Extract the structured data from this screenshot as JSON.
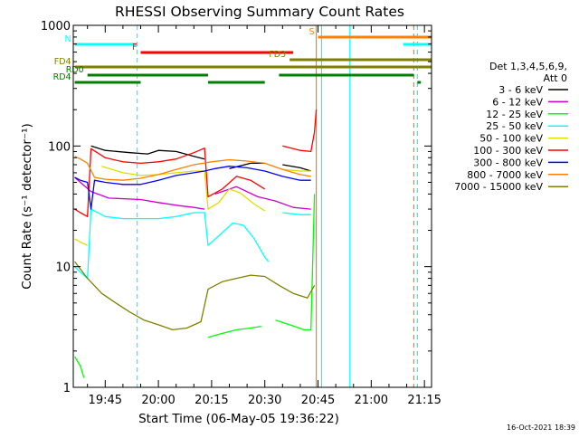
{
  "chart_data": {
    "type": "line",
    "title": "RHESSI Observing Summary Count Rates",
    "xlabel": "Start Time (06-May-05 19:36:22)",
    "ylabel": "Count Rate (s⁻¹ detector⁻¹)",
    "y_scale": "log",
    "ylim": [
      1,
      1000
    ],
    "xlim": [
      "19:36:22",
      "21:17:00"
    ],
    "y_ticks": [
      {
        "value": 1,
        "label": "1"
      },
      {
        "value": 10,
        "label": "10"
      },
      {
        "value": 100,
        "label": "100"
      },
      {
        "value": 1000,
        "label": "1000"
      }
    ],
    "x_ticks": [
      {
        "value": "19:45",
        "label": "19:45"
      },
      {
        "value": "20:00",
        "label": "20:00"
      },
      {
        "value": "20:15",
        "label": "20:15"
      },
      {
        "value": "20:30",
        "label": "20:30"
      },
      {
        "value": "20:45",
        "label": "20:45"
      },
      {
        "value": "21:00",
        "label": "21:00"
      },
      {
        "value": "21:15",
        "label": "21:15"
      }
    ],
    "legend": {
      "placement": "right",
      "header": [
        "Det 1,3,4,5,6,9,",
        "Att 0"
      ]
    },
    "series": [
      {
        "name": "3 - 6 keV",
        "color": "#000000",
        "points": [
          [
            "19:38",
            null
          ],
          [
            "19:41",
            100
          ],
          [
            "19:45",
            92
          ],
          [
            "19:52",
            88
          ],
          [
            "19:57",
            86
          ],
          [
            "20:00",
            92
          ],
          [
            "20:05",
            90
          ],
          [
            "20:10",
            82
          ],
          [
            "20:13",
            78
          ],
          [
            "20:14",
            null
          ],
          [
            "20:20",
            65
          ],
          [
            "20:26",
            72
          ],
          [
            "20:30",
            72
          ],
          [
            "20:33",
            null
          ],
          [
            "20:35",
            70
          ],
          [
            "20:40",
            66
          ],
          [
            "20:43",
            62
          ]
        ]
      },
      {
        "name": "6 - 12 keV",
        "color": "#cc00cc",
        "points": [
          [
            "19:36.4",
            55
          ],
          [
            "19:38",
            50
          ],
          [
            "19:41",
            42
          ],
          [
            "19:46",
            37
          ],
          [
            "19:55",
            36
          ],
          [
            "20:00",
            34
          ],
          [
            "20:06",
            32
          ],
          [
            "20:10",
            31
          ],
          [
            "20:13",
            30
          ],
          [
            "20:14",
            null
          ],
          [
            "20:16",
            40
          ],
          [
            "20:22",
            46
          ],
          [
            "20:28",
            38
          ],
          [
            "20:33",
            35
          ],
          [
            "20:38",
            31
          ],
          [
            "20:43",
            30
          ]
        ]
      },
      {
        "name": "12 - 25 keV",
        "color": "#00ff00",
        "points": [
          [
            "19:36.4",
            1.8
          ],
          [
            "19:38",
            1.5
          ],
          [
            "19:39",
            1.2
          ],
          [
            "19:40",
            null
          ],
          [
            "20:13",
            null
          ],
          [
            "20:14",
            2.6
          ],
          [
            "20:18",
            2.8
          ],
          [
            "20:22",
            3.0
          ],
          [
            "20:26",
            3.1
          ],
          [
            "20:29",
            3.2
          ],
          [
            "20:30",
            null
          ],
          [
            "20:33",
            3.6
          ],
          [
            "20:37",
            3.3
          ],
          [
            "20:41",
            3.0
          ],
          [
            "20:43",
            3.0
          ],
          [
            "20:44",
            40
          ]
        ]
      },
      {
        "name": "25 - 50 keV",
        "color": "#00ffff",
        "points": [
          [
            "19:36.4",
            10
          ],
          [
            "19:38",
            9
          ],
          [
            "19:40",
            8
          ],
          [
            "19:41",
            30
          ],
          [
            "19:45",
            26
          ],
          [
            "19:50",
            25
          ],
          [
            "19:55",
            25
          ],
          [
            "20:00",
            25
          ],
          [
            "20:05",
            26
          ],
          [
            "20:10",
            28
          ],
          [
            "20:13",
            28
          ],
          [
            "20:14",
            15
          ],
          [
            "20:17",
            18
          ],
          [
            "20:21",
            23
          ],
          [
            "20:24",
            22
          ],
          [
            "20:27",
            17
          ],
          [
            "20:30",
            12
          ],
          [
            "20:31",
            11
          ],
          [
            "20:33",
            null
          ],
          [
            "20:35",
            28
          ],
          [
            "20:40",
            27
          ],
          [
            "20:43",
            27
          ]
        ]
      },
      {
        "name": "50 - 100 keV",
        "color": "#dddd00",
        "points": [
          [
            "19:36.4",
            17
          ],
          [
            "19:38",
            16
          ],
          [
            "19:40",
            15
          ],
          [
            "19:41",
            null
          ],
          [
            "19:44",
            68
          ],
          [
            "19:50",
            60
          ],
          [
            "19:55",
            57
          ],
          [
            "20:00",
            58
          ],
          [
            "20:05",
            60
          ],
          [
            "20:10",
            62
          ],
          [
            "20:13",
            62
          ],
          [
            "20:14",
            30
          ],
          [
            "20:17",
            34
          ],
          [
            "20:20",
            44
          ],
          [
            "20:23",
            41
          ],
          [
            "20:27",
            33
          ],
          [
            "20:30",
            29
          ],
          [
            "20:33",
            null
          ],
          [
            "20:35",
            64
          ],
          [
            "20:40",
            62
          ],
          [
            "20:43",
            62
          ]
        ]
      },
      {
        "name": "100 - 300 keV",
        "color": "#ff0000",
        "points": [
          [
            "19:36.4",
            30
          ],
          [
            "19:38",
            28
          ],
          [
            "19:40",
            26
          ],
          [
            "19:41",
            95
          ],
          [
            "19:45",
            80
          ],
          [
            "19:50",
            74
          ],
          [
            "19:55",
            72
          ],
          [
            "20:00",
            74
          ],
          [
            "20:05",
            78
          ],
          [
            "20:10",
            88
          ],
          [
            "20:13",
            96
          ],
          [
            "20:14",
            38
          ],
          [
            "20:18",
            44
          ],
          [
            "20:22",
            56
          ],
          [
            "20:26",
            52
          ],
          [
            "20:30",
            44
          ],
          [
            "20:33",
            null
          ],
          [
            "20:35",
            100
          ],
          [
            "20:40",
            92
          ],
          [
            "20:43",
            90
          ],
          [
            "20:44",
            130
          ],
          [
            "20:44.5",
            200
          ]
        ]
      },
      {
        "name": "300 - 800 keV",
        "color": "#0000ff",
        "points": [
          [
            "19:36.4",
            55
          ],
          [
            "19:38",
            52
          ],
          [
            "19:40",
            50
          ],
          [
            "19:41",
            30
          ],
          [
            "19:42",
            52
          ],
          [
            "19:45",
            50
          ],
          [
            "19:50",
            48
          ],
          [
            "19:55",
            48
          ],
          [
            "20:00",
            52
          ],
          [
            "20:05",
            57
          ],
          [
            "20:10",
            60
          ],
          [
            "20:13",
            62
          ],
          [
            "20:16",
            65
          ],
          [
            "20:20",
            68
          ],
          [
            "20:25",
            66
          ],
          [
            "20:30",
            62
          ],
          [
            "20:35",
            56
          ],
          [
            "20:40",
            52
          ],
          [
            "20:43",
            52
          ]
        ]
      },
      {
        "name": "800 - 7000 keV",
        "color": "#ff8000",
        "points": [
          [
            "19:36.4",
            82
          ],
          [
            "19:38",
            78
          ],
          [
            "19:40",
            72
          ],
          [
            "19:42",
            55
          ],
          [
            "19:45",
            53
          ],
          [
            "19:50",
            52
          ],
          [
            "19:55",
            54
          ],
          [
            "20:00",
            58
          ],
          [
            "20:05",
            64
          ],
          [
            "20:10",
            70
          ],
          [
            "20:15",
            74
          ],
          [
            "20:20",
            77
          ],
          [
            "20:25",
            75
          ],
          [
            "20:30",
            72
          ],
          [
            "20:35",
            64
          ],
          [
            "20:40",
            58
          ],
          [
            "20:43",
            56
          ]
        ]
      },
      {
        "name": "7000 - 15000 keV",
        "color": "#808000",
        "points": [
          [
            "19:36.4",
            11
          ],
          [
            "19:40",
            8
          ],
          [
            "19:44",
            6
          ],
          [
            "19:48",
            5
          ],
          [
            "19:52",
            4.2
          ],
          [
            "19:56",
            3.6
          ],
          [
            "20:00",
            3.3
          ],
          [
            "20:04",
            3.0
          ],
          [
            "20:08",
            3.1
          ],
          [
            "20:12",
            3.5
          ],
          [
            "20:14",
            6.5
          ],
          [
            "20:18",
            7.5
          ],
          [
            "20:22",
            8
          ],
          [
            "20:26",
            8.5
          ],
          [
            "20:30",
            8.3
          ],
          [
            "20:34",
            7
          ],
          [
            "20:38",
            6
          ],
          [
            "20:42",
            5.5
          ],
          [
            "20:44",
            7
          ]
        ]
      }
    ],
    "flag_bars": [
      {
        "label": "N",
        "color": "#00ffff",
        "level": 1,
        "segments": [
          [
            "19:36.4",
            "19:54"
          ],
          [
            "21:09",
            "21:17"
          ]
        ]
      },
      {
        "label": "S",
        "color": "#ff8000",
        "level": 0,
        "segments": [
          [
            "20:45",
            "21:17"
          ]
        ]
      },
      {
        "label": "F",
        "color": "#ff0000",
        "level": 2,
        "segments": [
          [
            "19:55",
            "20:38"
          ]
        ]
      },
      {
        "label": "FD3",
        "color": "#808000",
        "level": 3,
        "segments": [
          [
            "20:37",
            "21:17"
          ]
        ]
      },
      {
        "label": "FD4",
        "color": "#808000",
        "level": 4,
        "segments": [
          [
            "19:36.4",
            "20:28"
          ],
          [
            "20:25",
            "21:17"
          ]
        ]
      },
      {
        "label": "RD0",
        "color": "#008000",
        "level": 5,
        "segments": [
          [
            "19:40",
            "20:14"
          ],
          [
            "20:34",
            "21:12"
          ]
        ]
      },
      {
        "label": "RD4",
        "color": "#008000",
        "level": 6,
        "segments": [
          [
            "19:36.4",
            "19:55"
          ],
          [
            "20:14",
            "20:30"
          ],
          [
            "21:13",
            "21:14"
          ]
        ]
      }
    ],
    "vertical_lines": [
      {
        "time": "19:54",
        "color": "#00ffff",
        "style": "dashed"
      },
      {
        "time": "20:44.5",
        "color": "#ff8000",
        "style": "solid"
      },
      {
        "time": "20:46",
        "color": "#00ffff",
        "style": "solid"
      },
      {
        "time": "20:54",
        "color": "#00ffff",
        "style": "solid"
      },
      {
        "time": "21:12",
        "color": "#ff8000",
        "style": "dashed"
      },
      {
        "time": "21:13",
        "color": "#00ffff",
        "style": "dashed"
      }
    ],
    "grid": false
  },
  "footer": {
    "timestamp": "16-Oct-2021 18:39"
  }
}
